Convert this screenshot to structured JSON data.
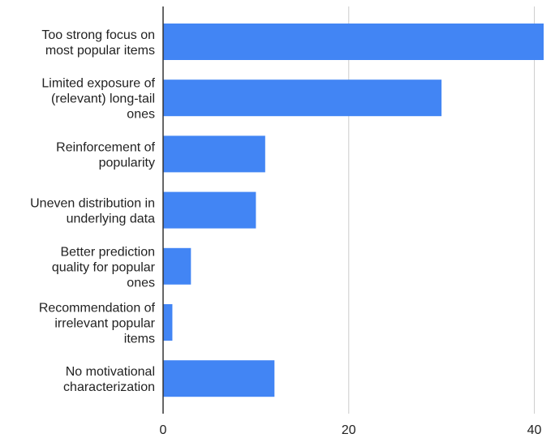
{
  "chart_data": {
    "type": "bar",
    "orientation": "horizontal",
    "categories": [
      [
        "Too strong focus on",
        "most popular items"
      ],
      [
        "Limited exposure of",
        "(relevant) long-tail",
        "ones"
      ],
      [
        "Reinforcement of",
        "popularity"
      ],
      [
        "Uneven distribution in",
        "underlying data"
      ],
      [
        "Better prediction",
        "quality for popular",
        "ones"
      ],
      [
        "Recommendation of",
        "irrelevant popular",
        "items"
      ],
      [
        "No motivational",
        "characterization"
      ]
    ],
    "values": [
      41,
      30,
      11,
      10,
      3,
      1,
      12
    ],
    "xlim": [
      0,
      41
    ],
    "xticks": [
      0,
      20,
      40
    ],
    "title": "",
    "xlabel": "",
    "ylabel": "",
    "grid": true,
    "legend": "none",
    "bar_color": "#4285f4",
    "grid_color": "#cccccc",
    "axis_color": "#333333"
  }
}
